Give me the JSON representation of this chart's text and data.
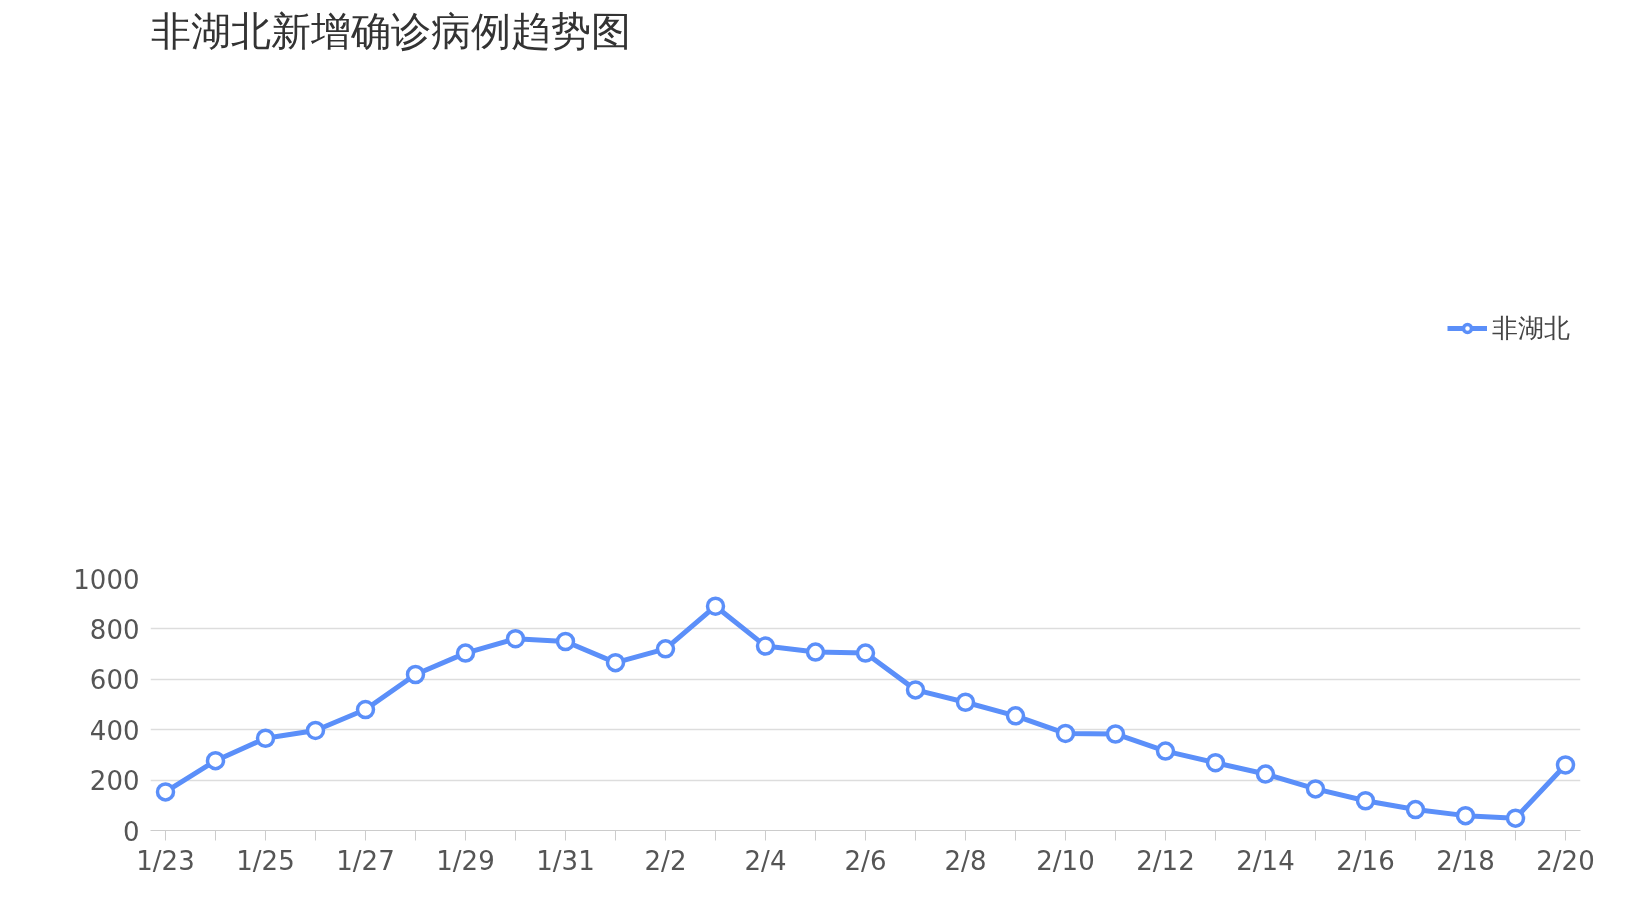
{
  "chart_data": {
    "type": "line",
    "title": "非湖北新增确诊病例趋势图",
    "categories": [
      "1/23",
      null,
      "1/25",
      null,
      "1/27",
      null,
      "1/29",
      null,
      "1/31",
      null,
      "2/2",
      null,
      "2/4",
      null,
      "2/6",
      null,
      "2/8",
      null,
      "2/10",
      null,
      "2/12",
      null,
      "2/14",
      null,
      "2/16",
      null,
      "2/18",
      null,
      "2/20"
    ],
    "series": [
      {
        "name": "非湖北",
        "color": "#5b8ff9",
        "values": [
          153,
          277,
          366,
          397,
          480,
          619,
          704,
          761,
          750,
          666,
          721,
          890,
          732,
          708,
          704,
          558,
          509,
          455,
          385,
          383,
          315,
          269,
          224,
          165,
          118,
          83,
          59,
          49,
          260
        ]
      }
    ],
    "ylim": [
      0,
      1000
    ],
    "yticks": [
      0,
      200,
      400,
      600,
      800,
      1000
    ],
    "grid": "y",
    "legend": "top right",
    "marker": "circle",
    "line_style": "solid"
  }
}
